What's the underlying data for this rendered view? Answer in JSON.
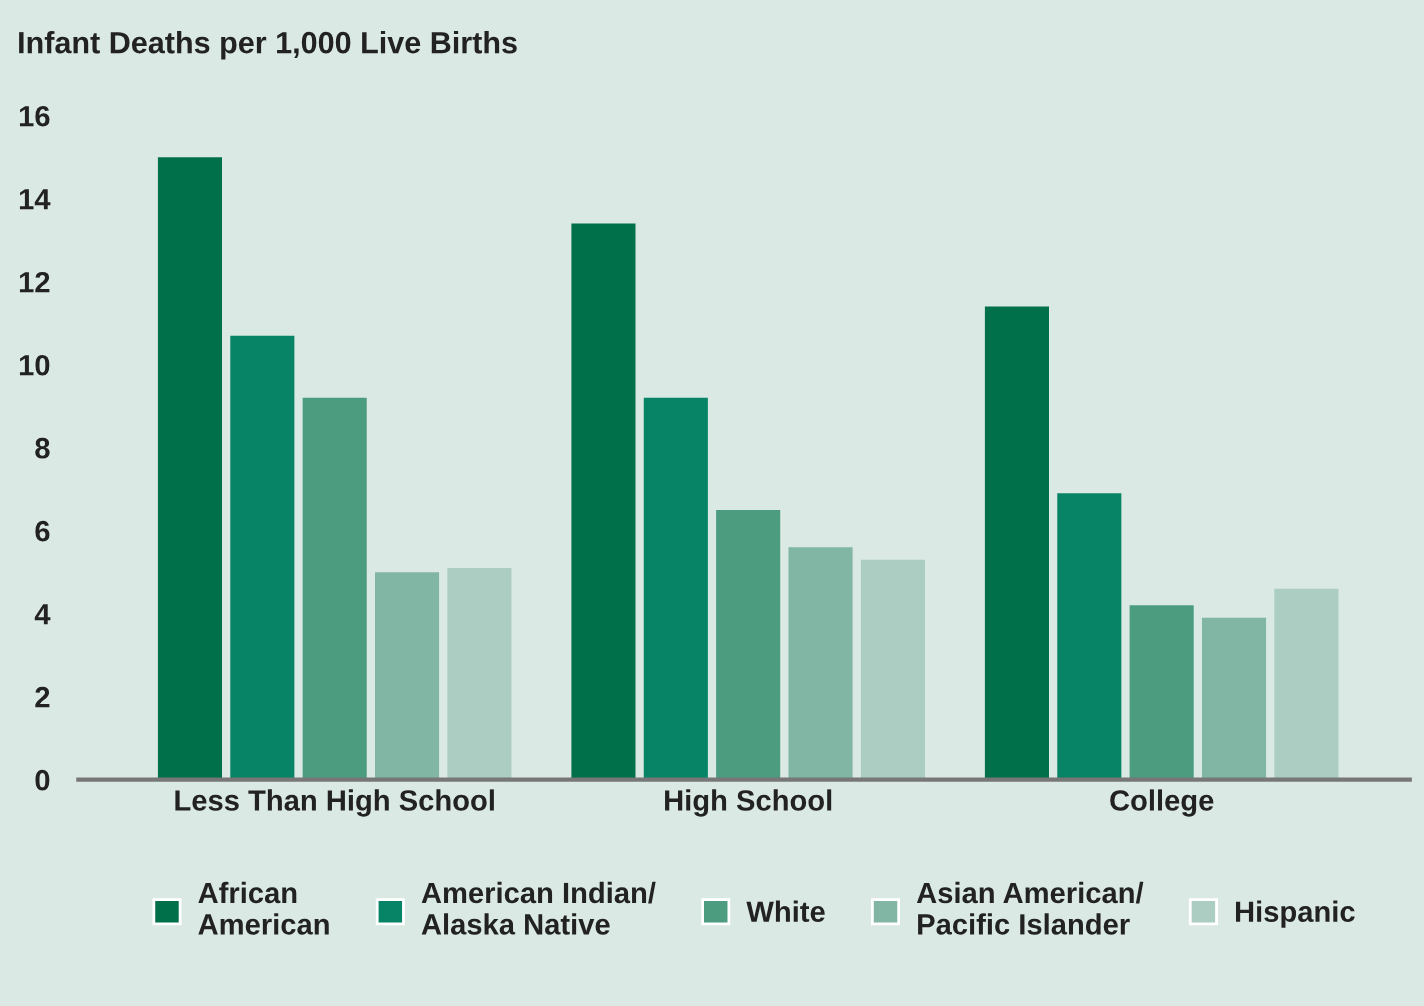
{
  "chart_data": {
    "type": "bar",
    "ylabel": "Infant Deaths per 1,000 Live Births",
    "categories": [
      "Less Than High School",
      "High School",
      "College"
    ],
    "series": [
      {
        "name": "African\nAmerican",
        "color": "#00704a",
        "values": [
          15.0,
          13.4,
          11.4
        ]
      },
      {
        "name": "American Indian/\nAlaska Native",
        "color": "#078466",
        "values": [
          10.7,
          9.2,
          6.9
        ]
      },
      {
        "name": "White",
        "color": "#4c9c80",
        "values": [
          9.2,
          6.5,
          4.2
        ]
      },
      {
        "name": "Asian American/\nPacific Islander",
        "color": "#82b6a4",
        "values": [
          5.0,
          5.6,
          3.9
        ]
      },
      {
        "name": "Hispanic",
        "color": "#abcdc2",
        "values": [
          5.1,
          5.3,
          4.6
        ]
      }
    ],
    "ylim": [
      0,
      16
    ],
    "yticks": [
      0,
      2,
      4,
      6,
      8,
      10,
      12,
      14,
      16
    ],
    "grid": false,
    "legend": "bottom"
  }
}
